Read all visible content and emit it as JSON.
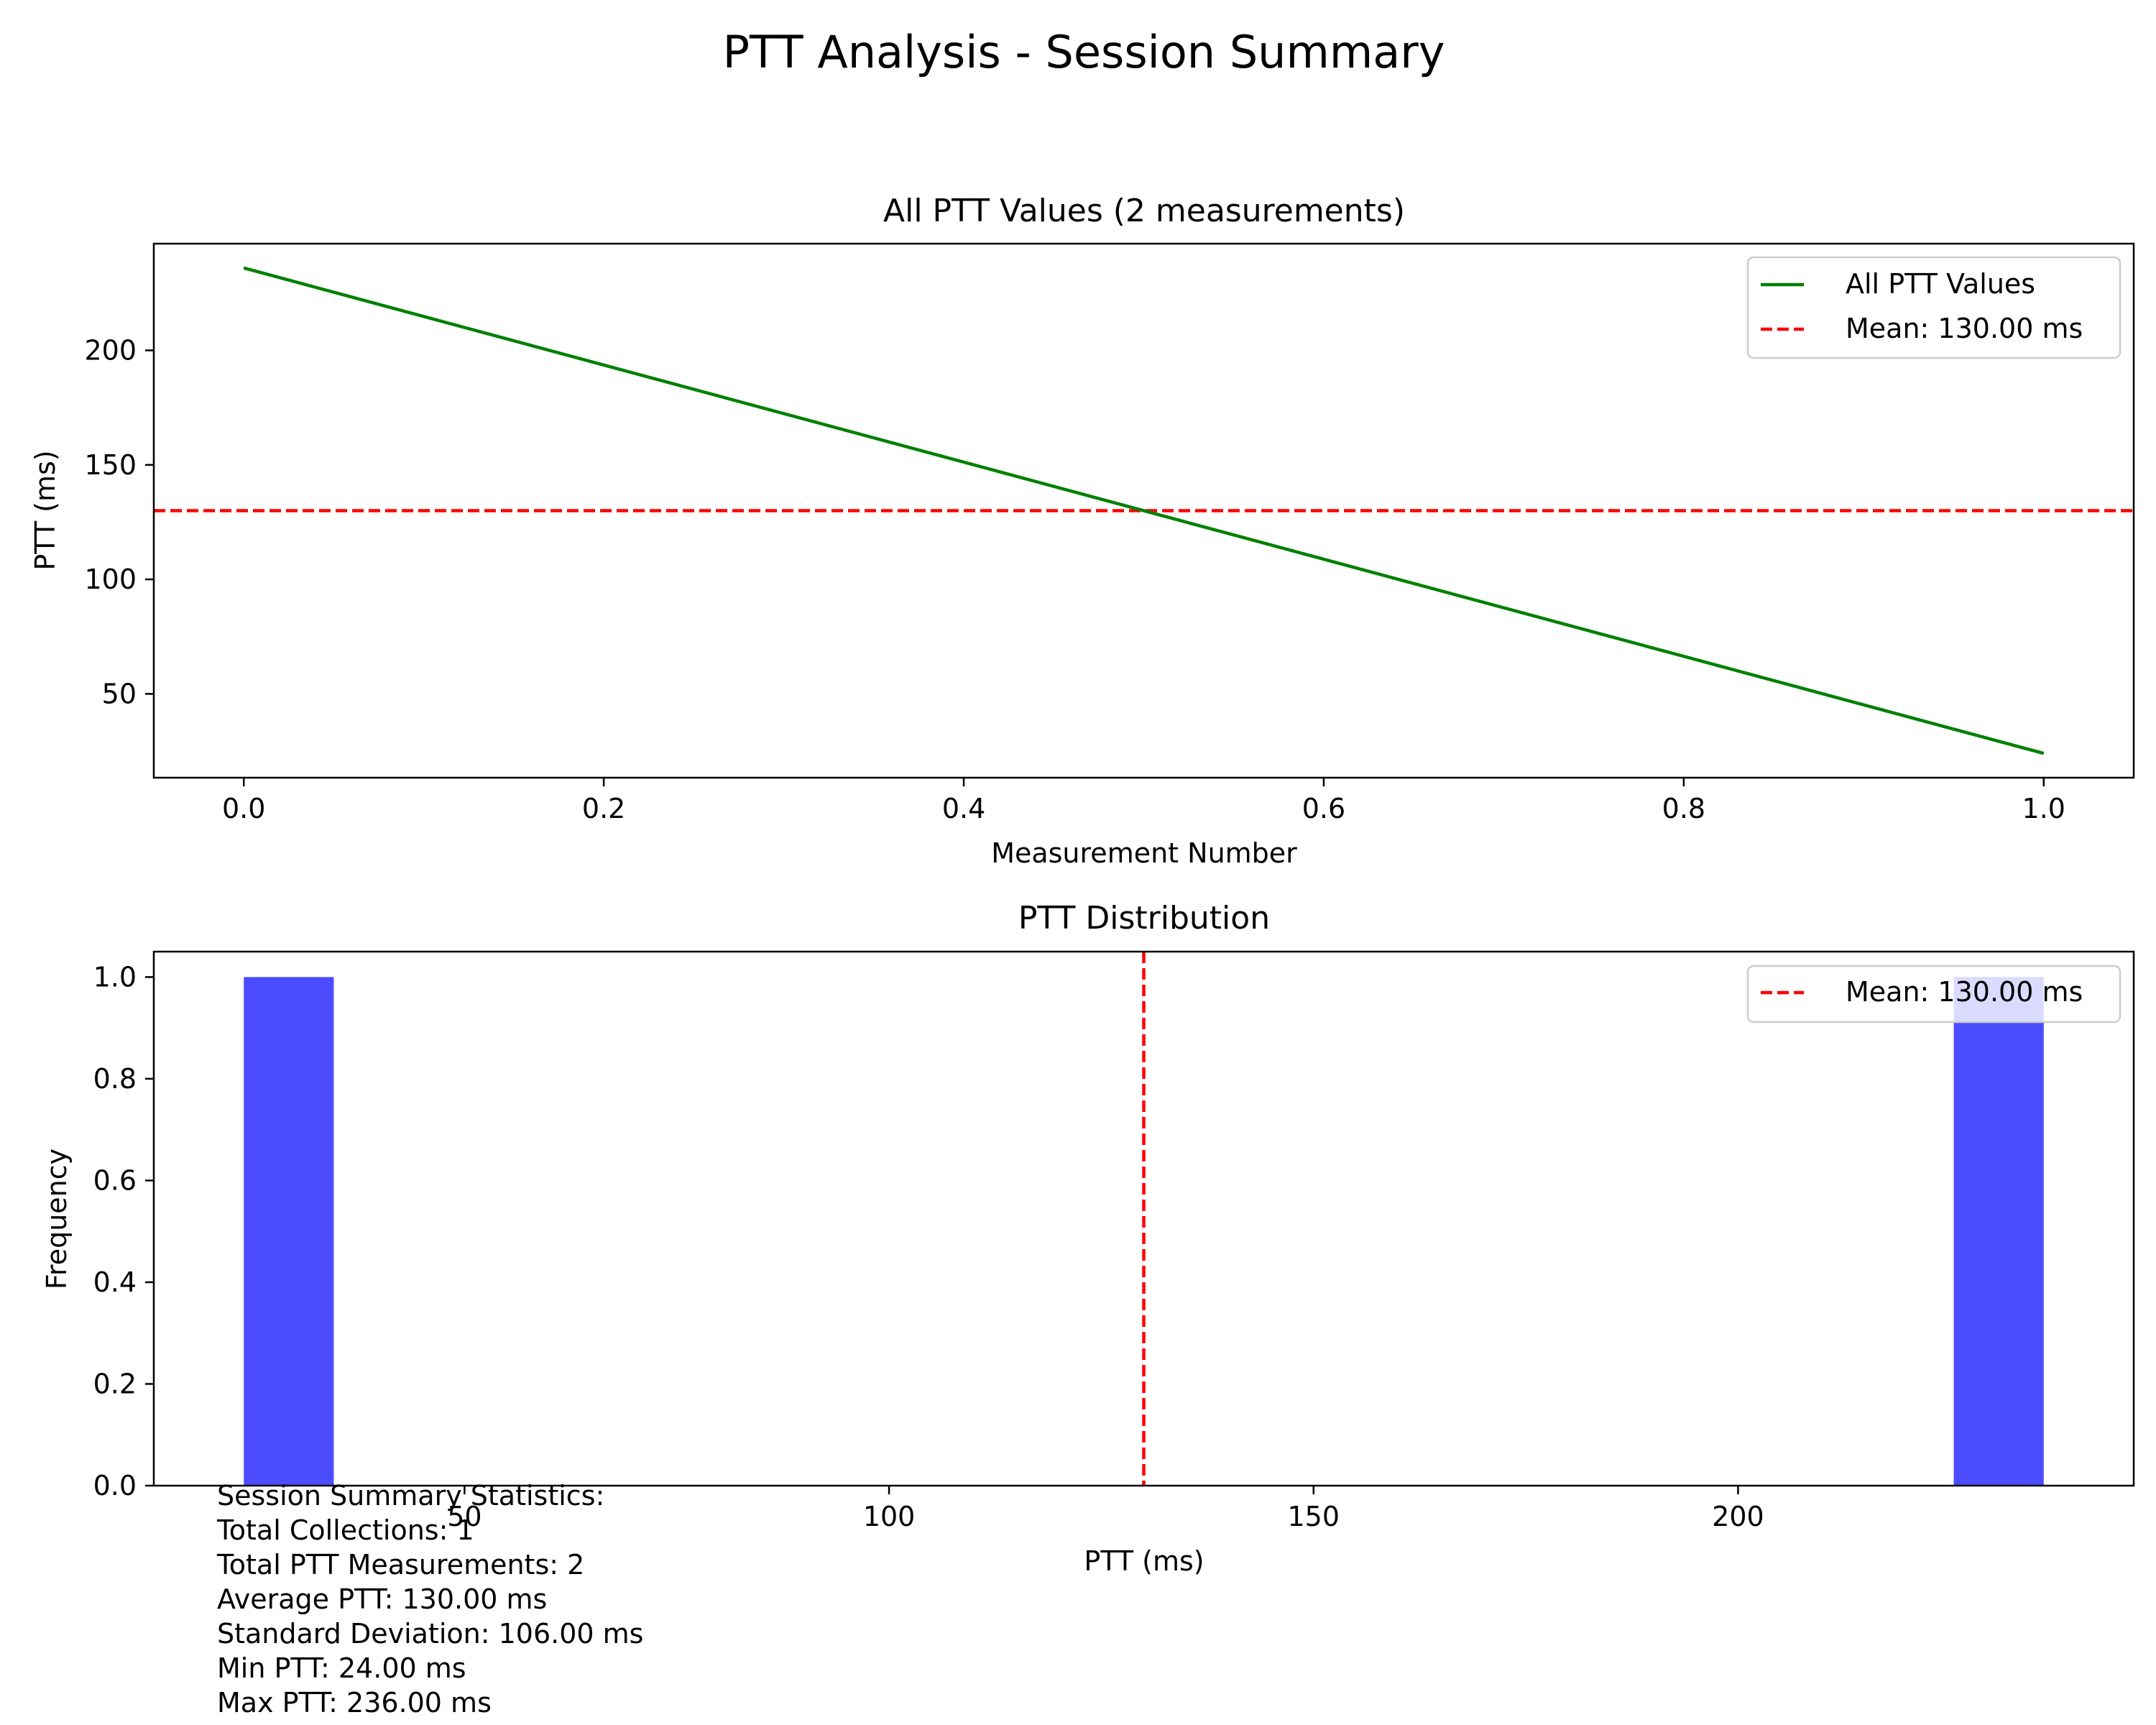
{
  "figure": {
    "suptitle": "PTT Analysis - Session Summary"
  },
  "chart_data": [
    {
      "type": "line",
      "title": "All PTT Values (2 measurements)",
      "xlabel": "Measurement Number",
      "ylabel": "PTT (ms)",
      "xlim": [
        -0.05,
        1.05
      ],
      "ylim": [
        13.4,
        246.6
      ],
      "xticks": [
        0.0,
        0.2,
        0.4,
        0.6,
        0.8,
        1.0
      ],
      "xtick_labels": [
        "0.0",
        "0.2",
        "0.4",
        "0.6",
        "0.8",
        "1.0"
      ],
      "yticks": [
        50,
        100,
        150,
        200
      ],
      "ytick_labels": [
        "50",
        "100",
        "150",
        "200"
      ],
      "grid": false,
      "legend_position": "upper right",
      "series": [
        {
          "name": "All PTT Values",
          "color": "#008000",
          "style": "solid",
          "x": [
            0,
            1
          ],
          "y": [
            236,
            24
          ]
        }
      ],
      "reference_lines": [
        {
          "label": "Mean: 130.00 ms",
          "orientation": "horizontal",
          "value": 130,
          "color": "#ff0000",
          "style": "dashed"
        }
      ]
    },
    {
      "type": "bar",
      "subtype": "histogram",
      "title": "PTT Distribution",
      "xlabel": "PTT (ms)",
      "ylabel": "Frequency",
      "xlim": [
        13.4,
        246.6
      ],
      "ylim": [
        0,
        1.05
      ],
      "xticks": [
        50,
        100,
        150,
        200
      ],
      "xtick_labels": [
        "50",
        "100",
        "150",
        "200"
      ],
      "yticks": [
        0.0,
        0.2,
        0.4,
        0.6,
        0.8,
        1.0
      ],
      "ytick_labels": [
        "0.0",
        "0.2",
        "0.4",
        "0.6",
        "0.8",
        "1.0"
      ],
      "grid": false,
      "legend_position": "upper right",
      "bar_color": "#0000ff",
      "bar_alpha": 0.7,
      "bins": [
        {
          "start": 24.0,
          "end": 34.6,
          "count": 1
        },
        {
          "start": 225.4,
          "end": 236.0,
          "count": 1
        }
      ],
      "reference_lines": [
        {
          "label": "Mean: 130.00 ms",
          "orientation": "vertical",
          "value": 130,
          "color": "#ff0000",
          "style": "dashed"
        }
      ]
    }
  ],
  "summary": {
    "lines": [
      "Session Summary Statistics:",
      "Total Collections: 1",
      "Total PTT Measurements: 2",
      "Average PTT: 130.00 ms",
      "Standard Deviation: 106.00 ms",
      "Min PTT: 24.00 ms",
      "Max PTT: 236.00 ms"
    ]
  }
}
